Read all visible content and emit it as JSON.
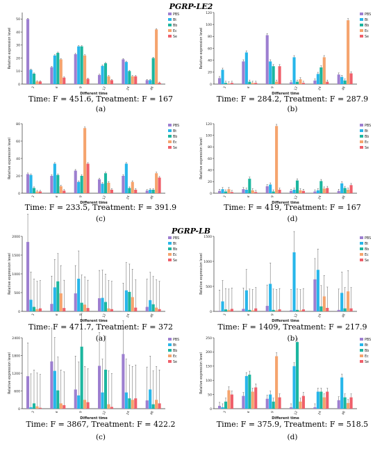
{
  "figure": {
    "sections": [
      {
        "title": "PGRP-LE2"
      },
      {
        "title": "PGRP-LB"
      }
    ]
  },
  "legend_labels": [
    "PBS",
    "Bt",
    "Bb",
    "Ec",
    "Se"
  ],
  "colors": {
    "PBS": "#9d7fd0",
    "Bt": "#27b6ea",
    "Bb": "#1cb69f",
    "Ec": "#f5a46e",
    "Se": "#ef5f6a"
  },
  "chart_data": [
    {
      "type": "bar",
      "panel": "(a)",
      "section": 0,
      "caption": "Time: F = 451.6, Treatment: F = 167",
      "xlabel": "Different time",
      "ylabel": "Relative expression level",
      "categories": [
        "3",
        "6",
        "9",
        "12",
        "24",
        "48"
      ],
      "ylim": [
        0,
        55
      ],
      "yticks": [
        0,
        10,
        20,
        30,
        40,
        50
      ],
      "series": [
        {
          "name": "PBS",
          "values": [
            50,
            13,
            23,
            7,
            19,
            3
          ]
        },
        {
          "name": "Bt",
          "values": [
            11,
            22,
            29,
            14,
            17,
            3
          ]
        },
        {
          "name": "Bb",
          "values": [
            8,
            24,
            29,
            16,
            10,
            20
          ]
        },
        {
          "name": "Ec",
          "values": [
            2,
            19,
            22,
            6,
            6,
            42
          ]
        },
        {
          "name": "Se",
          "values": [
            2,
            5,
            4,
            3,
            6,
            1
          ]
        }
      ]
    },
    {
      "type": "bar",
      "panel": "(b)",
      "section": 0,
      "caption": "Time: F = 284.2, Treatment: F = 287.9",
      "xlabel": "Different time",
      "ylabel": "Relative expression level",
      "categories": [
        "3",
        "6",
        "9",
        "12",
        "24",
        "48"
      ],
      "ylim": [
        0,
        120
      ],
      "yticks": [
        0,
        20,
        40,
        60,
        80,
        100,
        120
      ],
      "series": [
        {
          "name": "PBS",
          "values": [
            10,
            38,
            82,
            3,
            6,
            16
          ]
        },
        {
          "name": "Bt",
          "values": [
            24,
            53,
            38,
            45,
            17,
            12
          ]
        },
        {
          "name": "Bb",
          "values": [
            2,
            4,
            30,
            4,
            28,
            6
          ]
        },
        {
          "name": "Ec",
          "values": [
            1,
            2,
            4,
            8,
            45,
            107
          ]
        },
        {
          "name": "Se",
          "values": [
            2,
            2,
            30,
            2,
            4,
            18
          ]
        }
      ]
    },
    {
      "type": "bar",
      "panel": "(c)",
      "section": 0,
      "caption": "Time: F = 233.5, Treatment: F = 391.9",
      "xlabel": "Different time",
      "ylabel": "Relative expression level",
      "categories": [
        "3",
        "6",
        "9",
        "12",
        "24",
        "48"
      ],
      "ylim": [
        0,
        80
      ],
      "yticks": [
        0,
        20,
        40,
        60,
        80
      ],
      "series": [
        {
          "name": "PBS",
          "values": [
            22,
            20,
            26,
            16,
            20,
            3
          ]
        },
        {
          "name": "Bt",
          "values": [
            21,
            34,
            13,
            11,
            34,
            4
          ]
        },
        {
          "name": "Bb",
          "values": [
            6,
            21,
            20,
            23,
            6,
            4
          ]
        },
        {
          "name": "Ec",
          "values": [
            2,
            8,
            75,
            12,
            13,
            23
          ]
        },
        {
          "name": "Se",
          "values": [
            2,
            3,
            34,
            4,
            4,
            18
          ]
        }
      ]
    },
    {
      "type": "bar",
      "panel": "(d)",
      "section": 0,
      "caption": "Time: F = 419, Treatment: F = 167",
      "xlabel": "Different time",
      "ylabel": "Relative expression level",
      "categories": [
        "3",
        "6",
        "9",
        "12",
        "24",
        "48"
      ],
      "ylim": [
        0,
        120
      ],
      "yticks": [
        0,
        20,
        40,
        60,
        80,
        100,
        120
      ],
      "series": [
        {
          "name": "PBS",
          "values": [
            4,
            7,
            12,
            4,
            3,
            4
          ]
        },
        {
          "name": "Bt",
          "values": [
            7,
            6,
            15,
            6,
            5,
            17
          ]
        },
        {
          "name": "Bb",
          "values": [
            3,
            25,
            3,
            22,
            21,
            9
          ]
        },
        {
          "name": "Ec",
          "values": [
            7,
            5,
            116,
            5,
            8,
            6
          ]
        },
        {
          "name": "Se",
          "values": [
            2,
            2,
            6,
            4,
            9,
            14
          ]
        }
      ]
    },
    {
      "type": "bar",
      "panel": "(a)",
      "section": 1,
      "caption": "Time: F = 471.7, Treatment: F = 372",
      "xlabel": "Different time",
      "ylabel": "Relative expression level",
      "categories": [
        "3",
        "6",
        "9",
        "12",
        "24",
        "48"
      ],
      "ylim": [
        0,
        2000
      ],
      "yticks": [
        0,
        500,
        1000,
        1500,
        2000
      ],
      "series": [
        {
          "name": "PBS",
          "values": [
            1850,
            200,
            480,
            350,
            10,
            120
          ]
        },
        {
          "name": "Bt",
          "values": [
            310,
            640,
            870,
            360,
            560,
            300
          ]
        },
        {
          "name": "Bb",
          "values": [
            120,
            800,
            230,
            250,
            520,
            190
          ]
        },
        {
          "name": "Ec",
          "values": [
            60,
            480,
            180,
            80,
            380,
            100
          ]
        },
        {
          "name": "Se",
          "values": [
            80,
            90,
            90,
            60,
            100,
            60
          ]
        }
      ]
    },
    {
      "type": "bar",
      "panel": "(b)",
      "section": 1,
      "caption": "Time: F = 1409, Treatment: F = 217.9",
      "xlabel": "Different time",
      "ylabel": "Relative expression level",
      "categories": [
        "3",
        "6",
        "9",
        "12",
        "24",
        "48"
      ],
      "ylim": [
        0,
        1500
      ],
      "yticks": [
        0,
        500,
        1000,
        1500
      ],
      "series": [
        {
          "name": "PBS",
          "values": [
            10,
            50,
            110,
            20,
            640,
            30
          ]
        },
        {
          "name": "Bt",
          "values": [
            200,
            420,
            550,
            1180,
            830,
            370
          ]
        },
        {
          "name": "Bb",
          "values": [
            40,
            30,
            30,
            30,
            100,
            60
          ]
        },
        {
          "name": "Ec",
          "values": [
            30,
            20,
            20,
            20,
            300,
            400
          ]
        },
        {
          "name": "Se",
          "values": [
            50,
            60,
            40,
            40,
            70,
            60
          ]
        }
      ]
    },
    {
      "type": "bar",
      "panel": "(c)",
      "section": 1,
      "caption": "Time: F = 3867, Treatment: F = 422.2",
      "xlabel": "Different time",
      "ylabel": "Relative expression level",
      "categories": [
        "3",
        "6",
        "9",
        "12",
        "24",
        "48"
      ],
      "ylim": [
        0,
        2400
      ],
      "yticks": [
        0,
        600,
        1200,
        1800,
        2400
      ],
      "series": [
        {
          "name": "PBS",
          "values": [
            1100,
            1600,
            650,
            1450,
            1850,
            280
          ]
        },
        {
          "name": "Bt",
          "values": [
            50,
            1280,
            450,
            550,
            550,
            650
          ]
        },
        {
          "name": "Bb",
          "values": [
            180,
            620,
            2100,
            1320,
            350,
            150
          ]
        },
        {
          "name": "Ec",
          "values": [
            80,
            180,
            300,
            150,
            300,
            300
          ]
        },
        {
          "name": "Se",
          "values": [
            30,
            120,
            220,
            60,
            350,
            180
          ]
        }
      ]
    },
    {
      "type": "bar",
      "panel": "(d)",
      "section": 1,
      "caption": "Time: F = 375.9, Treatment: F = 518.5",
      "xlabel": "Different time",
      "ylabel": "Relative expression level",
      "categories": [
        "3",
        "6",
        "9",
        "12",
        "24",
        "48"
      ],
      "ylim": [
        0,
        250
      ],
      "yticks": [
        0,
        50,
        100,
        150,
        200,
        250
      ],
      "series": [
        {
          "name": "PBS",
          "values": [
            10,
            45,
            35,
            5,
            5,
            30
          ]
        },
        {
          "name": "Bt",
          "values": [
            5,
            115,
            50,
            150,
            60,
            110
          ]
        },
        {
          "name": "Bb",
          "values": [
            25,
            120,
            25,
            235,
            60,
            40
          ]
        },
        {
          "name": "Ec",
          "values": [
            65,
            60,
            185,
            25,
            40,
            20
          ]
        },
        {
          "name": "Se",
          "values": [
            50,
            75,
            40,
            45,
            60,
            40
          ]
        }
      ]
    }
  ]
}
